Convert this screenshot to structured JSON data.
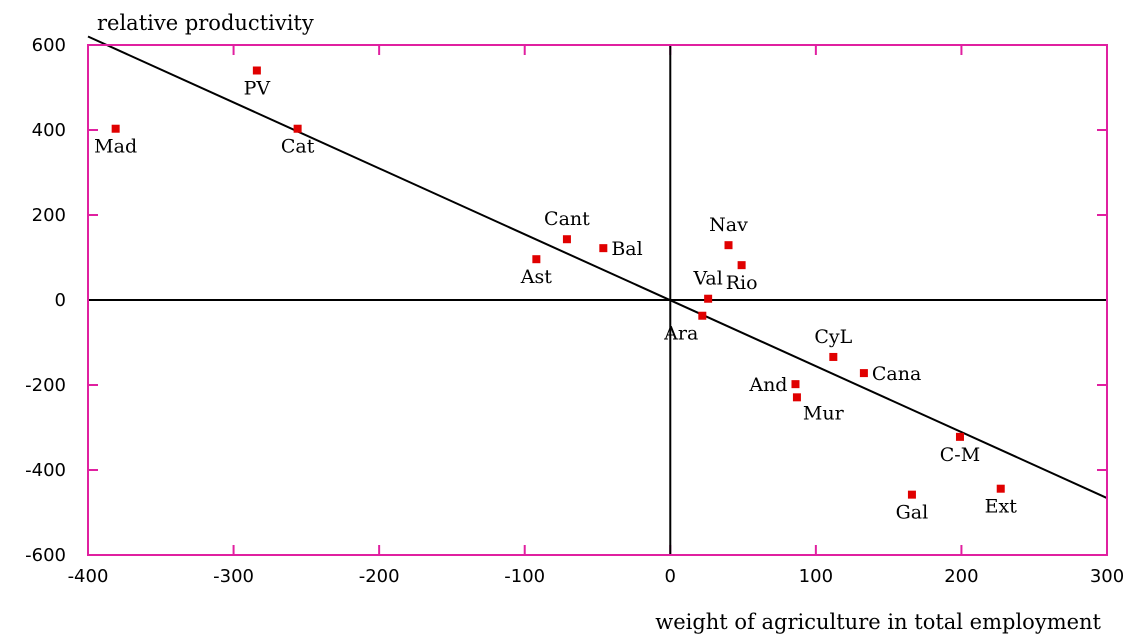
{
  "chart_data": {
    "type": "scatter",
    "title": "",
    "xlabel": "weight of agriculture in total employment",
    "ylabel": "relative productivity",
    "xlim": [
      -400,
      300
    ],
    "ylim": [
      -600,
      600
    ],
    "x_ticks": [
      -400,
      -300,
      -200,
      -100,
      0,
      100,
      200,
      300
    ],
    "y_ticks": [
      600,
      400,
      200,
      0,
      -200,
      -400,
      -600
    ],
    "x_tick_labels": [
      "-400",
      "-300",
      "-200",
      "-100",
      "0",
      "100",
      "200",
      "300"
    ],
    "y_tick_labels": [
      "600",
      "400",
      "200",
      "0",
      "-200",
      "-400",
      "-600"
    ],
    "grid": false,
    "zero_lines": true,
    "trend_line": {
      "x": [
        -400,
        300
      ],
      "y": [
        620,
        -466
      ]
    },
    "colors": {
      "frame": "#e020a0",
      "points": "#e00000",
      "lines": "#000000"
    },
    "points": [
      {
        "label": "PV",
        "x": -284,
        "y": 540,
        "label_pos": "below"
      },
      {
        "label": "Mad",
        "x": -381,
        "y": 403,
        "label_pos": "below"
      },
      {
        "label": "Cat",
        "x": -256,
        "y": 403,
        "label_pos": "below"
      },
      {
        "label": "Cant",
        "x": -71,
        "y": 143,
        "label_pos": "above"
      },
      {
        "label": "Bal",
        "x": -46,
        "y": 122,
        "label_pos": "right"
      },
      {
        "label": "Ast",
        "x": -92,
        "y": 96,
        "label_pos": "below"
      },
      {
        "label": "Nav",
        "x": 40,
        "y": 129,
        "label_pos": "above"
      },
      {
        "label": "Rio",
        "x": 49,
        "y": 82,
        "label_pos": "below"
      },
      {
        "label": "Val",
        "x": 26,
        "y": 3,
        "label_pos": "above"
      },
      {
        "label": "Ara",
        "x": 22,
        "y": -37,
        "label_pos": "below-left"
      },
      {
        "label": "CyL",
        "x": 112,
        "y": -134,
        "label_pos": "above"
      },
      {
        "label": "Cana",
        "x": 133,
        "y": -172,
        "label_pos": "right"
      },
      {
        "label": "And",
        "x": 86,
        "y": -198,
        "label_pos": "left"
      },
      {
        "label": "Mur",
        "x": 87,
        "y": -229,
        "label_pos": "below-right"
      },
      {
        "label": "C-M",
        "x": 199,
        "y": -322,
        "label_pos": "below"
      },
      {
        "label": "Gal",
        "x": 166,
        "y": -458,
        "label_pos": "below"
      },
      {
        "label": "Ext",
        "x": 227,
        "y": -444,
        "label_pos": "below"
      }
    ]
  }
}
